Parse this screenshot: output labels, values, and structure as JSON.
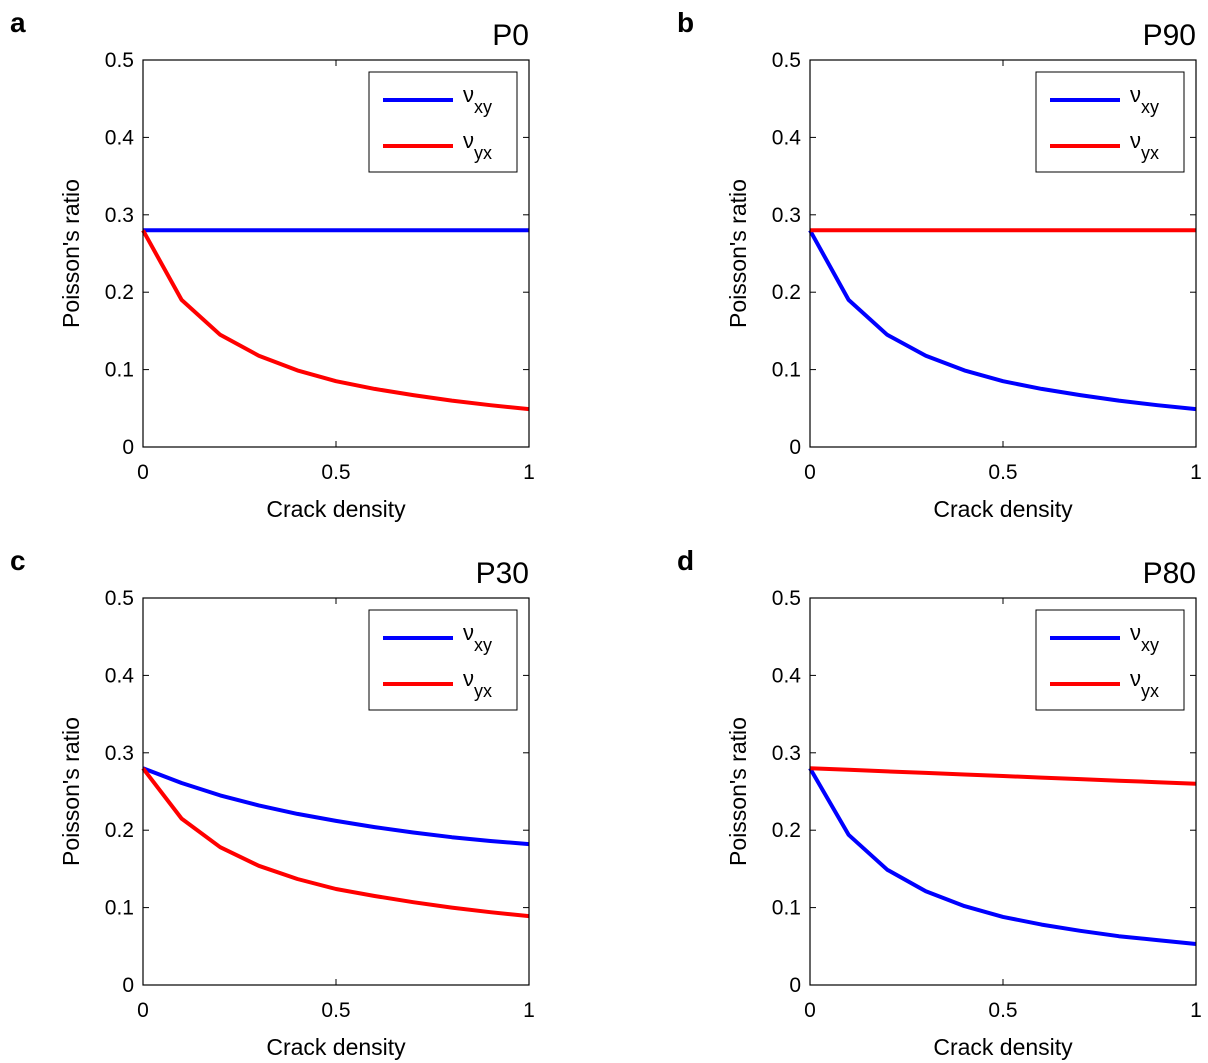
{
  "colors": {
    "nu_xy": "#0000ff",
    "nu_yx": "#ff0000",
    "axes": "#000000"
  },
  "chart_data": [
    {
      "type": "line",
      "panel": "a",
      "title": "P0",
      "xlabel": "Crack density",
      "ylabel": "Poisson's ratio",
      "xlim": [
        0,
        1
      ],
      "ylim": [
        0,
        0.5
      ],
      "xticks": [
        "0",
        "0.5",
        "1"
      ],
      "yticks": [
        "0",
        "0.1",
        "0.2",
        "0.3",
        "0.4",
        "0.5"
      ],
      "legend_position": "top-right",
      "x": [
        0,
        0.1,
        0.2,
        0.3,
        0.4,
        0.5,
        0.6,
        0.7,
        0.8,
        0.9,
        1.0
      ],
      "series": [
        {
          "name": "ν",
          "sub": "xy",
          "color": "#0000ff",
          "values": [
            0.28,
            0.28,
            0.28,
            0.28,
            0.28,
            0.28,
            0.28,
            0.28,
            0.28,
            0.28,
            0.28
          ]
        },
        {
          "name": "ν",
          "sub": "yx",
          "color": "#ff0000",
          "values": [
            0.28,
            0.19,
            0.145,
            0.118,
            0.099,
            0.085,
            0.075,
            0.067,
            0.06,
            0.054,
            0.049
          ]
        }
      ]
    },
    {
      "type": "line",
      "panel": "b",
      "title": "P90",
      "xlabel": "Crack density",
      "ylabel": "Poisson's ratio",
      "xlim": [
        0,
        1
      ],
      "ylim": [
        0,
        0.5
      ],
      "xticks": [
        "0",
        "0.5",
        "1"
      ],
      "yticks": [
        "0",
        "0.1",
        "0.2",
        "0.3",
        "0.4",
        "0.5"
      ],
      "legend_position": "top-right",
      "x": [
        0,
        0.1,
        0.2,
        0.3,
        0.4,
        0.5,
        0.6,
        0.7,
        0.8,
        0.9,
        1.0
      ],
      "series": [
        {
          "name": "ν",
          "sub": "xy",
          "color": "#0000ff",
          "values": [
            0.28,
            0.19,
            0.145,
            0.118,
            0.099,
            0.085,
            0.075,
            0.067,
            0.06,
            0.054,
            0.049
          ]
        },
        {
          "name": "ν",
          "sub": "yx",
          "color": "#ff0000",
          "values": [
            0.28,
            0.28,
            0.28,
            0.28,
            0.28,
            0.28,
            0.28,
            0.28,
            0.28,
            0.28,
            0.28
          ]
        }
      ]
    },
    {
      "type": "line",
      "panel": "c",
      "title": "P30",
      "xlabel": "Crack density",
      "ylabel": "Poisson's ratio",
      "xlim": [
        0,
        1
      ],
      "ylim": [
        0,
        0.5
      ],
      "xticks": [
        "0",
        "0.5",
        "1"
      ],
      "yticks": [
        "0",
        "0.1",
        "0.2",
        "0.3",
        "0.4",
        "0.5"
      ],
      "legend_position": "top-right",
      "x": [
        0,
        0.1,
        0.2,
        0.3,
        0.4,
        0.5,
        0.6,
        0.7,
        0.8,
        0.9,
        1.0
      ],
      "series": [
        {
          "name": "ν",
          "sub": "xy",
          "color": "#0000ff",
          "values": [
            0.28,
            0.261,
            0.245,
            0.232,
            0.221,
            0.212,
            0.204,
            0.197,
            0.191,
            0.186,
            0.182
          ]
        },
        {
          "name": "ν",
          "sub": "yx",
          "color": "#ff0000",
          "values": [
            0.28,
            0.215,
            0.178,
            0.154,
            0.137,
            0.124,
            0.115,
            0.107,
            0.1,
            0.094,
            0.089
          ]
        }
      ]
    },
    {
      "type": "line",
      "panel": "d",
      "title": "P80",
      "xlabel": "Crack density",
      "ylabel": "Poisson's ratio",
      "xlim": [
        0,
        1
      ],
      "ylim": [
        0,
        0.5
      ],
      "xticks": [
        "0",
        "0.5",
        "1"
      ],
      "yticks": [
        "0",
        "0.1",
        "0.2",
        "0.3",
        "0.4",
        "0.5"
      ],
      "legend_position": "top-right",
      "x": [
        0,
        0.1,
        0.2,
        0.3,
        0.4,
        0.5,
        0.6,
        0.7,
        0.8,
        0.9,
        1.0
      ],
      "series": [
        {
          "name": "ν",
          "sub": "xy",
          "color": "#0000ff",
          "values": [
            0.28,
            0.194,
            0.149,
            0.121,
            0.102,
            0.088,
            0.078,
            0.07,
            0.063,
            0.058,
            0.053
          ]
        },
        {
          "name": "ν",
          "sub": "yx",
          "color": "#ff0000",
          "values": [
            0.28,
            0.278,
            0.276,
            0.274,
            0.272,
            0.27,
            0.268,
            0.266,
            0.264,
            0.262,
            0.26
          ]
        }
      ]
    }
  ]
}
